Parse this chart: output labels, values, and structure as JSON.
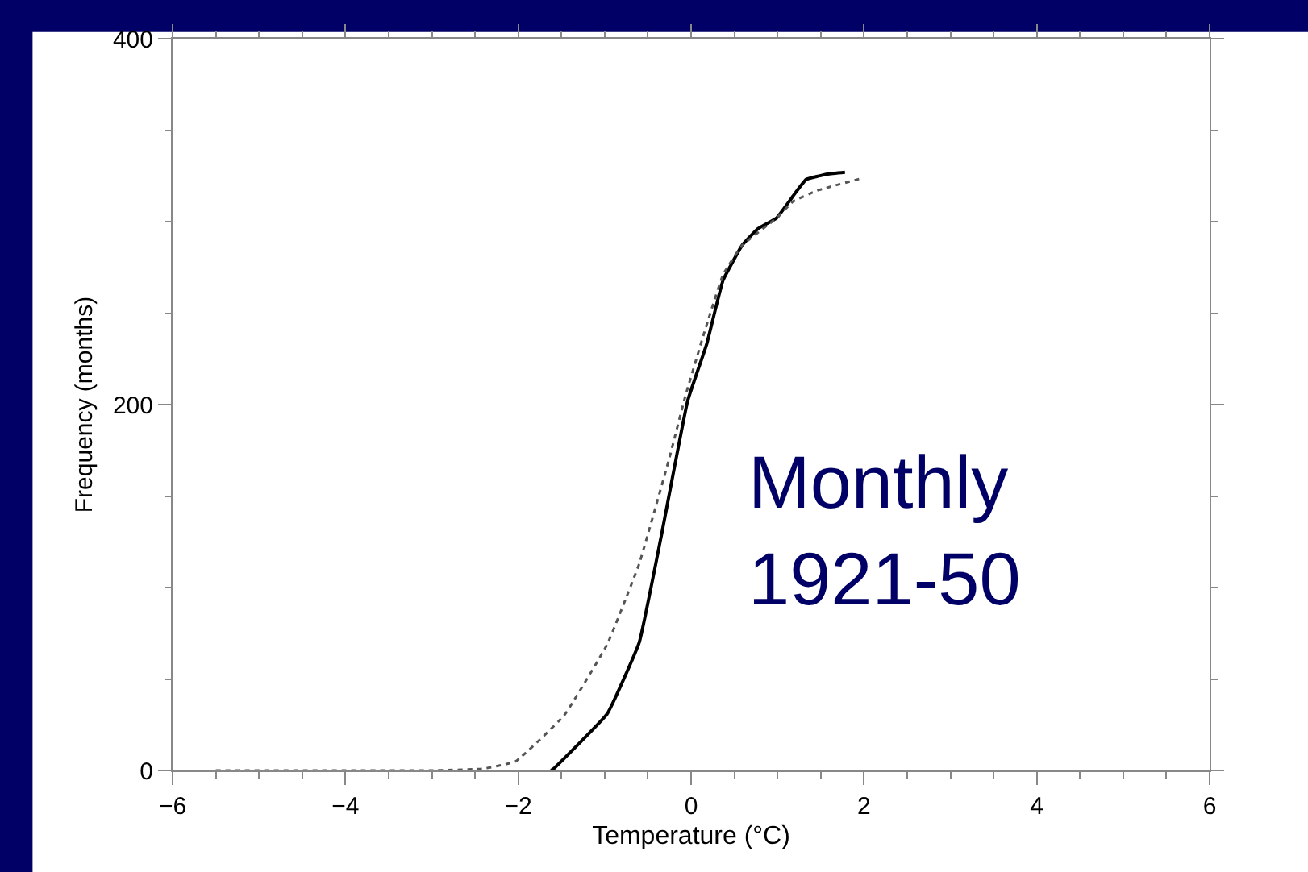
{
  "chart_data": {
    "type": "line",
    "xlabel": "Temperature (°C)",
    "ylabel": "Frequency (months)",
    "xlim": [
      -6,
      6
    ],
    "xticks": [
      {
        "value": -6,
        "label": "−6"
      },
      {
        "value": -4,
        "label": "−4"
      },
      {
        "value": -2,
        "label": "−2"
      },
      0,
      2,
      4,
      6
    ],
    "ylim": [
      0,
      400
    ],
    "yticks": [
      0,
      200,
      400
    ],
    "marker": "none",
    "annotations": [
      "Monthly\n1921-50"
    ],
    "series": [
      {
        "color": "#000000",
        "line_style": "solid",
        "x": [
          -1.62,
          -1.59,
          -0.97,
          -0.6,
          -0.35,
          -0.04,
          0.18,
          0.37,
          0.59,
          0.77,
          0.99,
          1.18,
          1.33,
          1.58,
          1.78
        ],
        "values": [
          0,
          1,
          31,
          70,
          127,
          202,
          233,
          268,
          287,
          296,
          302,
          314,
          323,
          326,
          327
        ]
      },
      {
        "color": "#555555",
        "line_style": "dotted",
        "x": [
          -5.5,
          -4,
          -3,
          -2.4,
          -2.03,
          -1.47,
          -0.97,
          -0.6,
          -0.25,
          -0.07,
          0.15,
          0.37,
          0.59,
          0.99,
          1.18,
          1.46,
          2.0
        ],
        "values": [
          0,
          0,
          0,
          1,
          5,
          30,
          69,
          113,
          171,
          204,
          239,
          271,
          287,
          302,
          311,
          317,
          324
        ]
      }
    ]
  }
}
